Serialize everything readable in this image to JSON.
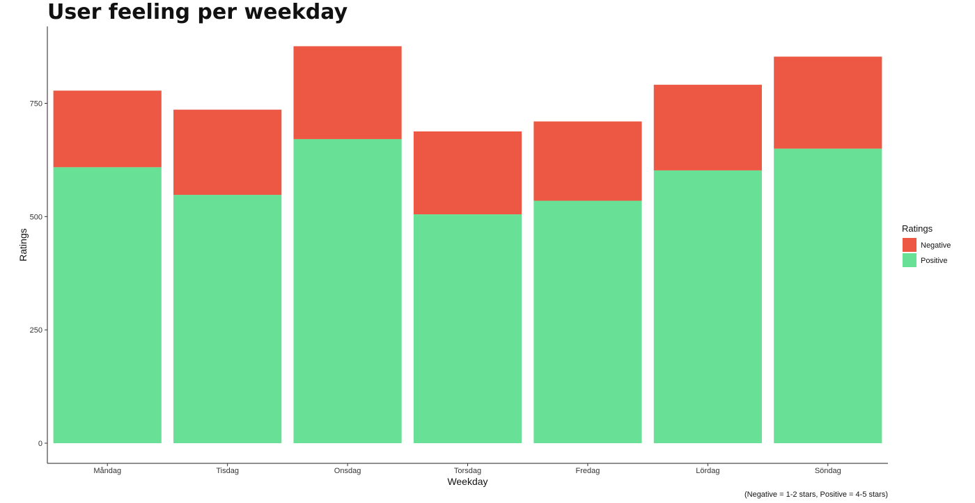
{
  "chart_data": {
    "type": "bar",
    "stacked": true,
    "title": "User feeling per weekday",
    "xlabel": "Weekday",
    "ylabel": "Ratings",
    "caption": "(Negative = 1-2 stars, Positive = 4-5 stars)",
    "categories": [
      "Måndag",
      "Tisdag",
      "Onsdag",
      "Torsdag",
      "Fredag",
      "Lördag",
      "Söndag"
    ],
    "series": [
      {
        "name": "Positive",
        "color": "#68E095",
        "values": [
          609,
          548,
          671,
          505,
          535,
          602,
          650
        ]
      },
      {
        "name": "Negative",
        "color": "#EC5843",
        "values": [
          169,
          188,
          205,
          183,
          175,
          189,
          203
        ]
      }
    ],
    "ylim": [
      0,
      900
    ],
    "yticks": [
      "0",
      "250",
      "500",
      "750"
    ],
    "legend": {
      "title": "Ratings",
      "position": "right",
      "entries": [
        {
          "label": "Negative",
          "color": "#EC5843"
        },
        {
          "label": "Positive",
          "color": "#68E095"
        }
      ]
    },
    "grid": false
  }
}
